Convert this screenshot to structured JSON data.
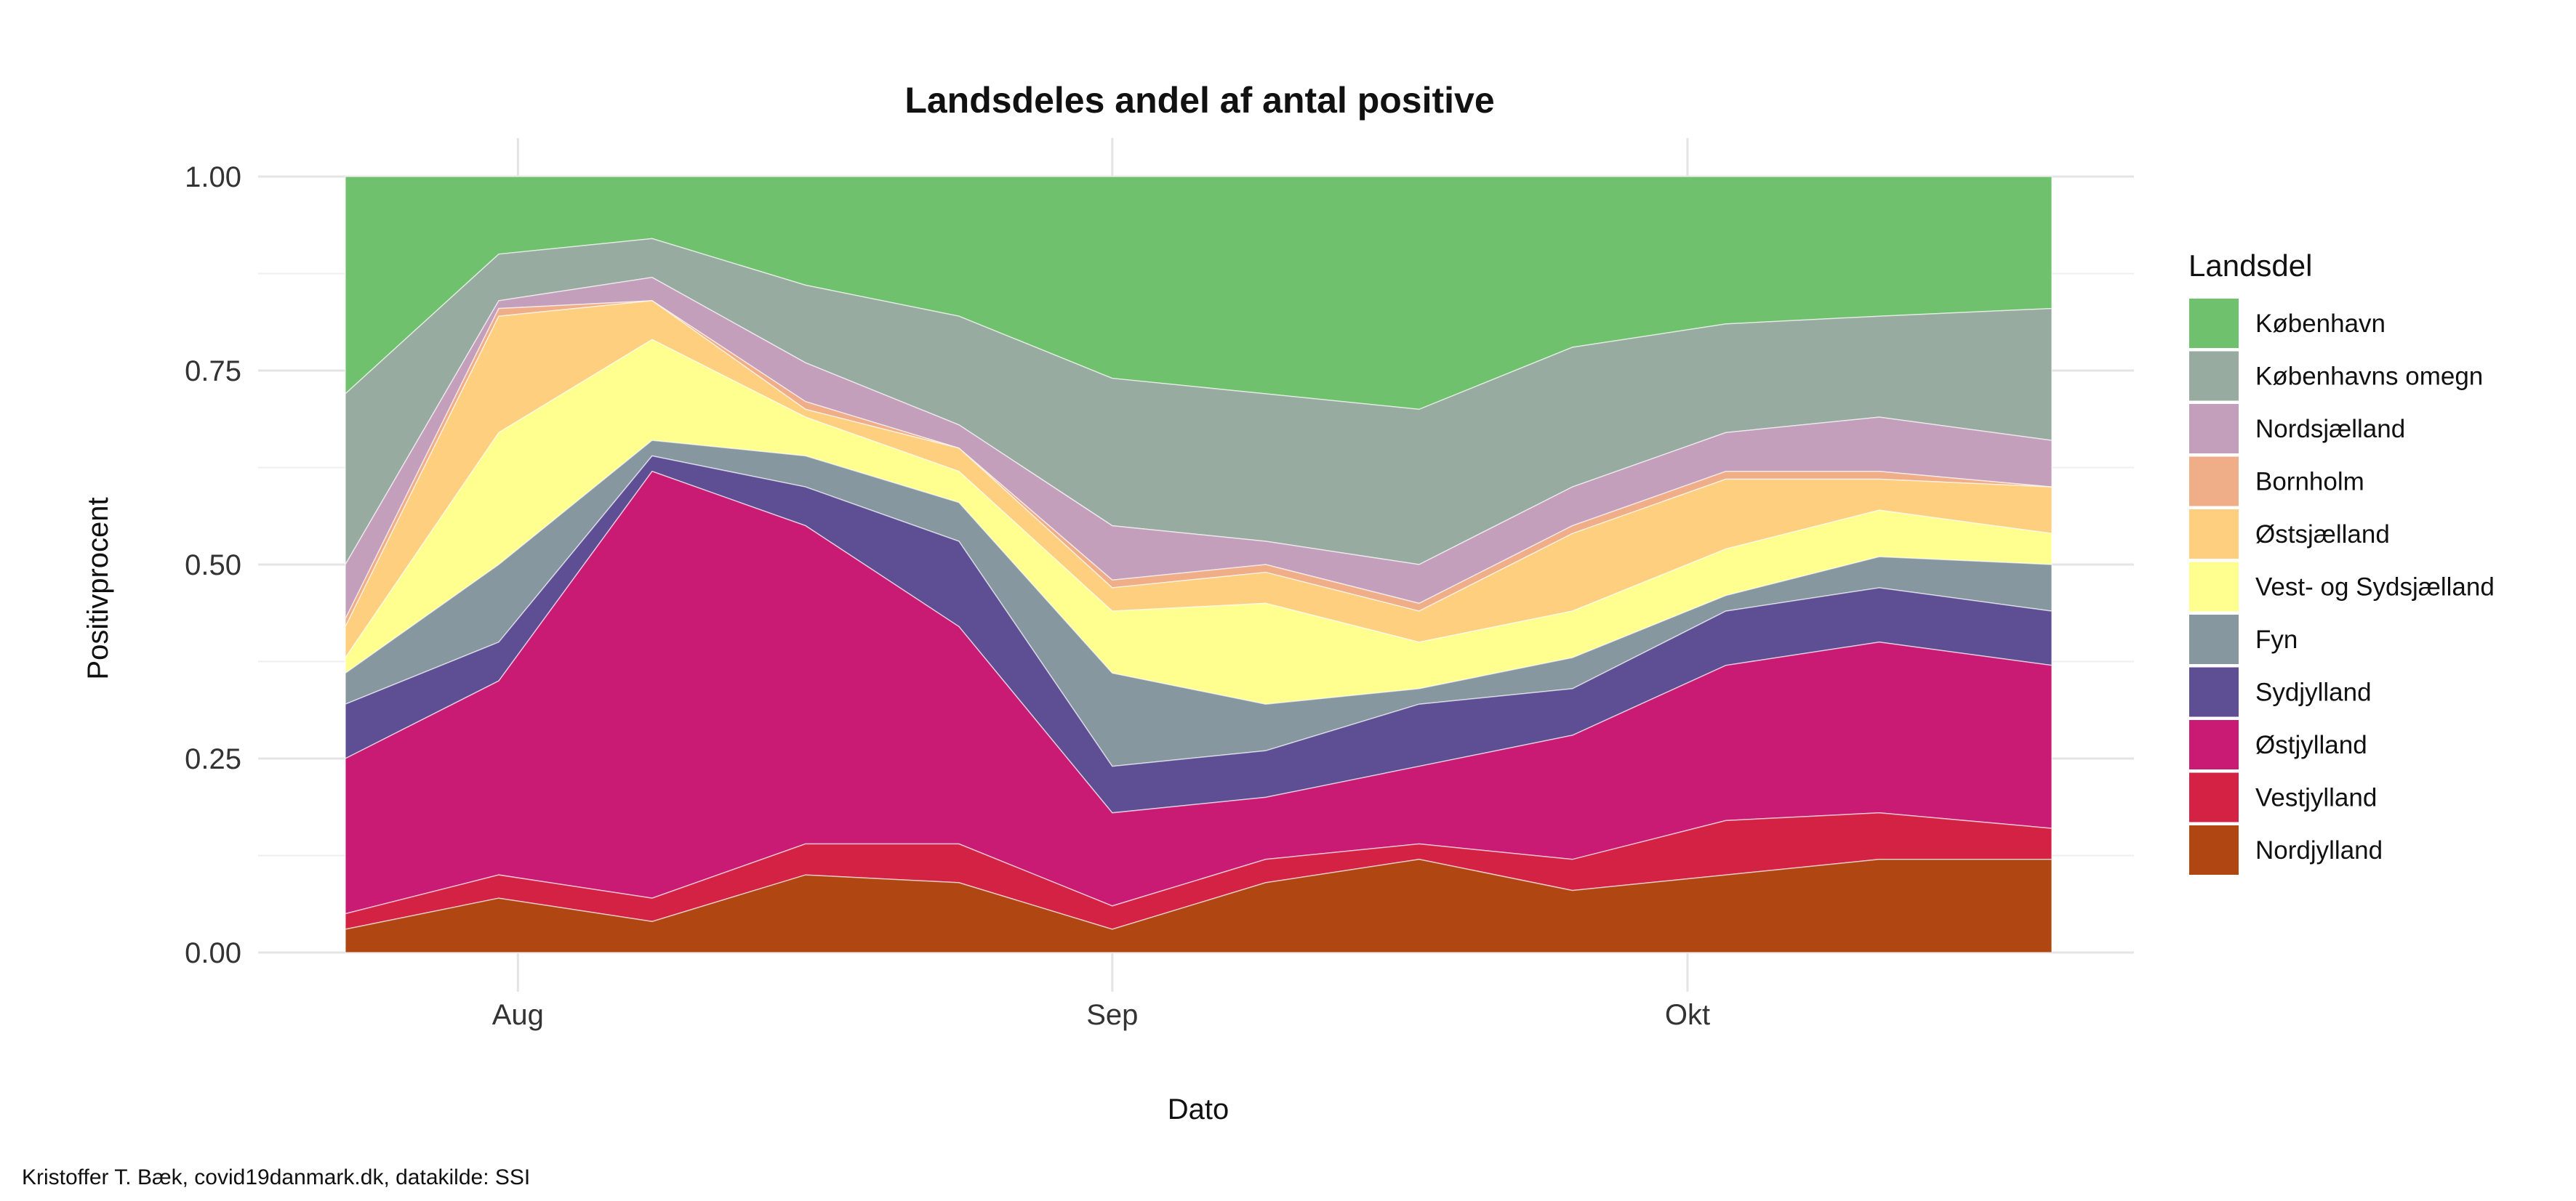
{
  "chart_data": {
    "type": "area",
    "stacked": true,
    "normalized": true,
    "title": "Landsdeles andel af antal positive",
    "xlabel": "Dato",
    "ylabel": "Positivprocent",
    "caption": "Kristoffer T. Bæk, covid19danmark.dk, datakilde: SSI",
    "legend_title": "Landsdel",
    "legend_position": "right",
    "grid": true,
    "ylim": [
      0,
      1
    ],
    "y_ticks": [
      "0.00",
      "0.25",
      "0.50",
      "0.75",
      "1.00"
    ],
    "y_tick_values": [
      0,
      0.25,
      0.5,
      0.75,
      1
    ],
    "x_range": [
      "2020-07-23",
      "2020-10-20"
    ],
    "x_ticks": [
      {
        "date": "2020-08-01",
        "label": "Aug"
      },
      {
        "date": "2020-09-01",
        "label": "Sep"
      },
      {
        "date": "2020-10-01",
        "label": "Okt"
      }
    ],
    "x_anchor_dates": [
      "2020-07-23",
      "2020-07-31",
      "2020-08-08",
      "2020-08-16",
      "2020-08-24",
      "2020-09-01",
      "2020-09-09",
      "2020-09-17",
      "2020-09-25",
      "2020-10-03",
      "2020-10-11",
      "2020-10-20"
    ],
    "stack_order_bottom_to_top": [
      "Nordjylland",
      "Vestjylland",
      "Østjylland",
      "Sydjylland",
      "Fyn",
      "Vest- og Sydsjælland",
      "Østsjælland",
      "Bornholm",
      "Nordsjælland",
      "Københavns omegn",
      "København"
    ],
    "series": [
      {
        "name": "København",
        "color": "#6fc16d",
        "cumulative_top": [
          1,
          1,
          1,
          1,
          1,
          1,
          1,
          1,
          1,
          1,
          1,
          1
        ]
      },
      {
        "name": "Københavns omegn",
        "color": "#98aba0",
        "cumulative_top": [
          0.72,
          0.9,
          0.92,
          0.86,
          0.82,
          0.74,
          0.72,
          0.7,
          0.78,
          0.81,
          0.82,
          0.83
        ]
      },
      {
        "name": "Nordsjælland",
        "color": "#c39fbb",
        "cumulative_top": [
          0.5,
          0.84,
          0.87,
          0.76,
          0.68,
          0.55,
          0.53,
          0.5,
          0.6,
          0.67,
          0.69,
          0.66
        ]
      },
      {
        "name": "Bornholm",
        "color": "#efad88",
        "cumulative_top": [
          0.43,
          0.83,
          0.84,
          0.71,
          0.65,
          0.48,
          0.5,
          0.45,
          0.55,
          0.62,
          0.62,
          0.6
        ]
      },
      {
        "name": "Østsjælland",
        "color": "#fdcf7e",
        "cumulative_top": [
          0.42,
          0.82,
          0.84,
          0.7,
          0.65,
          0.47,
          0.49,
          0.44,
          0.54,
          0.61,
          0.61,
          0.6
        ]
      },
      {
        "name": "Vest- og Sydsjælland",
        "color": "#ffff8f",
        "cumulative_top": [
          0.38,
          0.67,
          0.79,
          0.69,
          0.62,
          0.44,
          0.45,
          0.4,
          0.44,
          0.52,
          0.57,
          0.54
        ]
      },
      {
        "name": "Fyn",
        "color": "#8697a0",
        "cumulative_top": [
          0.36,
          0.5,
          0.66,
          0.64,
          0.58,
          0.36,
          0.32,
          0.34,
          0.38,
          0.46,
          0.51,
          0.5
        ]
      },
      {
        "name": "Sydjylland",
        "color": "#5e4f95",
        "cumulative_top": [
          0.32,
          0.4,
          0.64,
          0.6,
          0.53,
          0.24,
          0.26,
          0.32,
          0.34,
          0.44,
          0.47,
          0.44
        ]
      },
      {
        "name": "Østjylland",
        "color": "#c91b73",
        "cumulative_top": [
          0.25,
          0.35,
          0.62,
          0.55,
          0.42,
          0.18,
          0.2,
          0.24,
          0.28,
          0.37,
          0.4,
          0.37
        ]
      },
      {
        "name": "Vestjylland",
        "color": "#d42245",
        "cumulative_top": [
          0.05,
          0.1,
          0.07,
          0.14,
          0.14,
          0.06,
          0.12,
          0.14,
          0.12,
          0.17,
          0.18,
          0.16
        ]
      },
      {
        "name": "Nordjylland",
        "color": "#b04612",
        "cumulative_top": [
          0.03,
          0.07,
          0.04,
          0.1,
          0.09,
          0.03,
          0.09,
          0.12,
          0.08,
          0.1,
          0.12,
          0.12
        ]
      }
    ]
  }
}
